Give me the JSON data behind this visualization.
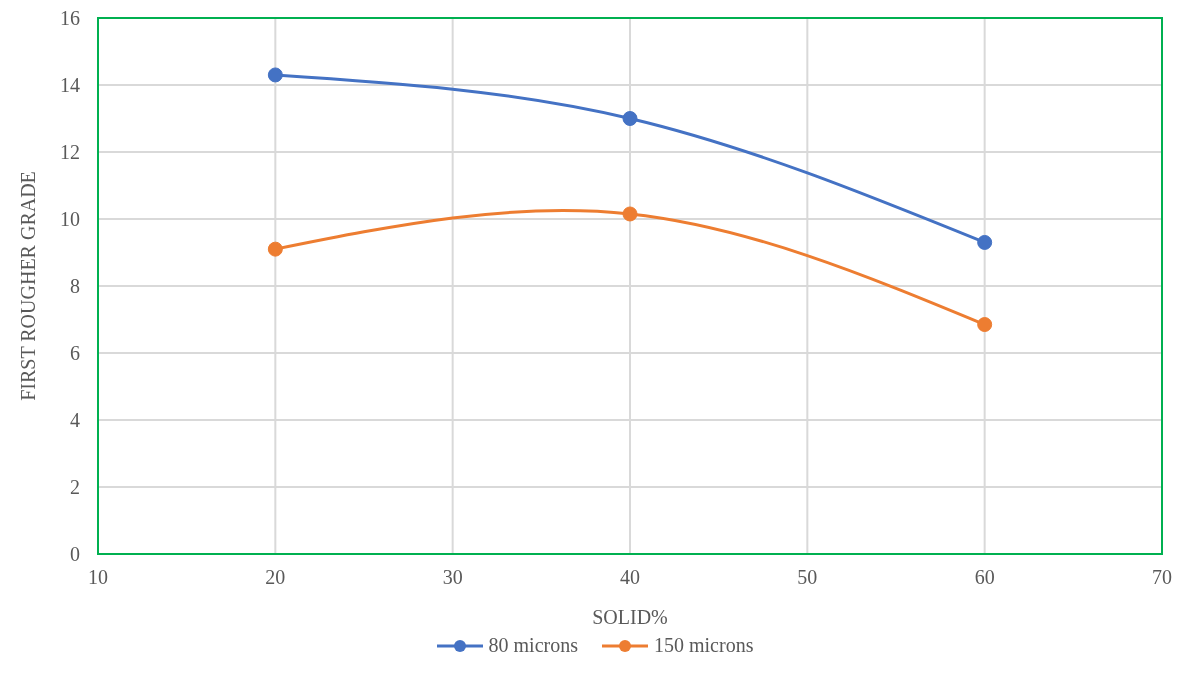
{
  "chart_data": {
    "type": "line",
    "xlabel": "SOLID%",
    "ylabel": "FIRST ROUGHER  GRADE",
    "x": [
      20,
      40,
      60
    ],
    "series": [
      {
        "name": "80 microns",
        "color": "#4472c4",
        "values": [
          14.3,
          13.0,
          9.3
        ]
      },
      {
        "name": "150 microns",
        "color": "#ed7d31",
        "values": [
          9.1,
          10.15,
          6.85
        ]
      }
    ],
    "xlim": [
      10,
      70
    ],
    "xticks": [
      10,
      20,
      30,
      40,
      50,
      60,
      70
    ],
    "ylim": [
      0,
      16
    ],
    "yticks": [
      0,
      2,
      4,
      6,
      8,
      10,
      12,
      14,
      16
    ],
    "grid": true,
    "legend": "bottom",
    "marker": "circle",
    "line_style": "solid"
  }
}
